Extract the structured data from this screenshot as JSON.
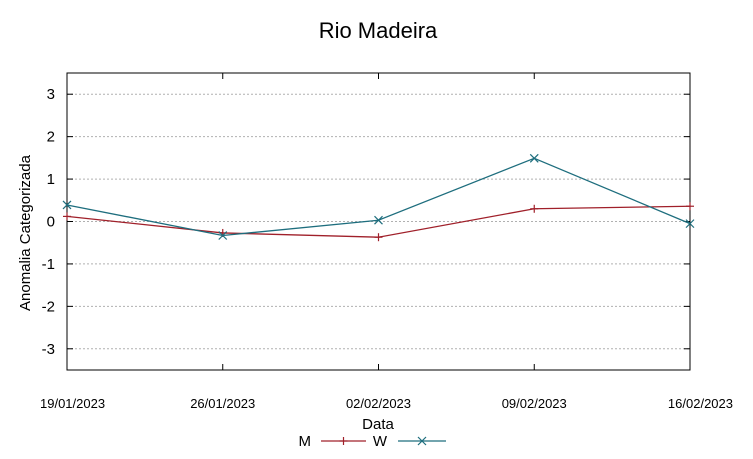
{
  "chart_data": {
    "type": "line",
    "title": "Rio Madeira",
    "xlabel": "Data",
    "ylabel": "Anomalia Categorizada",
    "categories": [
      "19/01/2023",
      "26/01/2023",
      "02/02/2023",
      "09/02/2023",
      "16/02/2023"
    ],
    "y_ticks": [
      "3",
      "2",
      "1",
      "0",
      "-1",
      "-2",
      "-3"
    ],
    "ylim": [
      -3.5,
      3.5
    ],
    "grid": true,
    "legend_placement": "bottom",
    "series": [
      {
        "name": "M",
        "values": [
          0.12,
          -0.27,
          -0.37,
          0.3,
          0.36
        ],
        "color": "#a0202a",
        "marker": "plus"
      },
      {
        "name": "W",
        "values": [
          0.39,
          -0.33,
          0.03,
          1.49,
          -0.05
        ],
        "color": "#1e6e7e",
        "marker": "cross"
      }
    ]
  }
}
